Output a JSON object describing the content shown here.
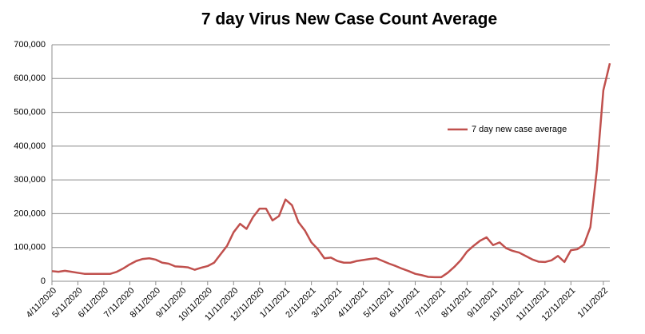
{
  "chart_data": {
    "type": "line",
    "title": "7 day Virus New Case Count Average",
    "categories": [
      "4/11/2020",
      null,
      null,
      null,
      "5/11/2020",
      null,
      null,
      null,
      "6/11/2020",
      null,
      null,
      null,
      "7/11/2020",
      null,
      null,
      null,
      "8/11/2020",
      null,
      null,
      null,
      "9/11/2020",
      null,
      null,
      null,
      "10/11/2020",
      null,
      null,
      null,
      "11/11/2020",
      null,
      null,
      null,
      "12/11/2020",
      null,
      null,
      null,
      "1/11/2021",
      null,
      null,
      null,
      "2/11/2021",
      null,
      null,
      null,
      "3/11/2021",
      null,
      null,
      null,
      "4/11/2021",
      null,
      null,
      null,
      "5/11/2021",
      null,
      null,
      null,
      "6/11/2021",
      null,
      null,
      null,
      "7/11/2021",
      null,
      null,
      null,
      "8/11/2021",
      null,
      null,
      null,
      "9/11/2021",
      null,
      null,
      null,
      "10/11/2021",
      null,
      null,
      null,
      "11/11/2021",
      null,
      null,
      null,
      "12/11/2021",
      null,
      null,
      null,
      null,
      "1/11/2022",
      null
    ],
    "series": [
      {
        "name": "7 day new case average",
        "color": "#c0504d",
        "values": [
          30000,
          28000,
          31000,
          28000,
          25000,
          22000,
          22000,
          22000,
          22000,
          22000,
          28000,
          38000,
          50000,
          60000,
          66000,
          68000,
          64000,
          55000,
          52000,
          44000,
          43000,
          41000,
          34000,
          40000,
          45000,
          55000,
          80000,
          105000,
          145000,
          170000,
          155000,
          190000,
          215000,
          215000,
          180000,
          193000,
          242000,
          225000,
          175000,
          150000,
          115000,
          95000,
          68000,
          70000,
          60000,
          55000,
          55000,
          60000,
          63000,
          66000,
          68000,
          60000,
          52000,
          45000,
          37000,
          30000,
          22000,
          18000,
          13000,
          12000,
          12000,
          25000,
          42000,
          62000,
          88000,
          105000,
          120000,
          130000,
          107000,
          115000,
          98000,
          90000,
          85000,
          75000,
          65000,
          58000,
          57000,
          62000,
          75000,
          57000,
          92000,
          95000,
          108000,
          160000,
          330000,
          565000,
          645000
        ]
      }
    ],
    "ylim": [
      0,
      700000
    ],
    "yticks": [
      0,
      {
        "value": 100000,
        "label": "100,000"
      },
      {
        "value": 200000,
        "label": "200,000"
      },
      {
        "value": 300000,
        "label": "300,000"
      },
      {
        "value": 400000,
        "label": "400,000"
      },
      {
        "value": 500000,
        "label": "500,000"
      },
      {
        "value": 600000,
        "label": "600,000"
      },
      {
        "value": 700000,
        "label": "700,000"
      }
    ],
    "grid": true,
    "legend": "right"
  }
}
